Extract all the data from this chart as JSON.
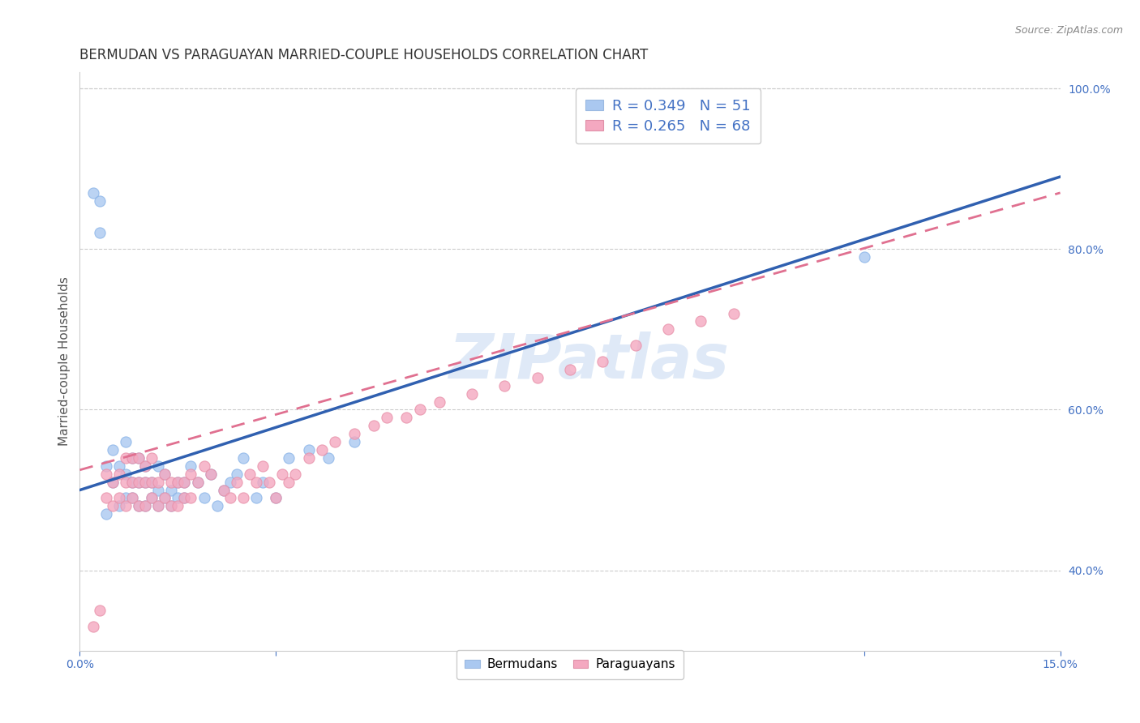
{
  "title": "BERMUDAN VS PARAGUAYAN MARRIED-COUPLE HOUSEHOLDS CORRELATION CHART",
  "source": "Source: ZipAtlas.com",
  "ylabel": "Married-couple Households",
  "xlim": [
    0.0,
    0.15
  ],
  "ylim": [
    0.3,
    1.02
  ],
  "xticks": [
    0.0,
    0.03,
    0.06,
    0.09,
    0.12,
    0.15
  ],
  "xtick_labels": [
    "0.0%",
    "",
    "",
    "",
    "",
    "15.0%"
  ],
  "ytick_labels_right": [
    "40.0%",
    "60.0%",
    "80.0%",
    "100.0%"
  ],
  "yticks_right": [
    0.4,
    0.6,
    0.8,
    1.0
  ],
  "legend1_label": "R = 0.349   N = 51",
  "legend2_label": "R = 0.265   N = 68",
  "legend_color1": "#aac8f0",
  "legend_color2": "#f4a8c0",
  "dot_color1": "#aac8f0",
  "dot_color2": "#f4a8c0",
  "line_color1": "#3060b0",
  "line_color2": "#e07090",
  "watermark": "ZIPatlas",
  "title_fontsize": 13,
  "axis_label_fontsize": 11,
  "tick_fontsize": 10,
  "bermuda_x": [
    0.002,
    0.003,
    0.003,
    0.004,
    0.004,
    0.005,
    0.005,
    0.006,
    0.006,
    0.007,
    0.007,
    0.007,
    0.008,
    0.008,
    0.008,
    0.009,
    0.009,
    0.009,
    0.01,
    0.01,
    0.01,
    0.011,
    0.011,
    0.012,
    0.012,
    0.012,
    0.013,
    0.013,
    0.014,
    0.014,
    0.015,
    0.015,
    0.016,
    0.016,
    0.017,
    0.018,
    0.019,
    0.02,
    0.021,
    0.022,
    0.023,
    0.024,
    0.025,
    0.027,
    0.028,
    0.03,
    0.032,
    0.035,
    0.038,
    0.042,
    0.12
  ],
  "bermuda_y": [
    0.87,
    0.86,
    0.82,
    0.47,
    0.53,
    0.51,
    0.55,
    0.48,
    0.53,
    0.49,
    0.52,
    0.56,
    0.49,
    0.51,
    0.54,
    0.48,
    0.51,
    0.54,
    0.48,
    0.51,
    0.53,
    0.49,
    0.51,
    0.48,
    0.5,
    0.53,
    0.49,
    0.52,
    0.48,
    0.5,
    0.49,
    0.51,
    0.49,
    0.51,
    0.53,
    0.51,
    0.49,
    0.52,
    0.48,
    0.5,
    0.51,
    0.52,
    0.54,
    0.49,
    0.51,
    0.49,
    0.54,
    0.55,
    0.54,
    0.56,
    0.79
  ],
  "paraguay_x": [
    0.002,
    0.003,
    0.004,
    0.004,
    0.005,
    0.005,
    0.006,
    0.006,
    0.007,
    0.007,
    0.007,
    0.008,
    0.008,
    0.008,
    0.009,
    0.009,
    0.009,
    0.01,
    0.01,
    0.01,
    0.011,
    0.011,
    0.011,
    0.012,
    0.012,
    0.013,
    0.013,
    0.014,
    0.014,
    0.015,
    0.015,
    0.016,
    0.016,
    0.017,
    0.017,
    0.018,
    0.019,
    0.02,
    0.022,
    0.023,
    0.024,
    0.025,
    0.026,
    0.027,
    0.028,
    0.029,
    0.03,
    0.031,
    0.032,
    0.033,
    0.035,
    0.037,
    0.039,
    0.042,
    0.045,
    0.047,
    0.05,
    0.052,
    0.055,
    0.06,
    0.065,
    0.07,
    0.075,
    0.08,
    0.085,
    0.09,
    0.095,
    0.1
  ],
  "paraguay_y": [
    0.33,
    0.35,
    0.49,
    0.52,
    0.48,
    0.51,
    0.49,
    0.52,
    0.48,
    0.51,
    0.54,
    0.49,
    0.51,
    0.54,
    0.48,
    0.51,
    0.54,
    0.48,
    0.51,
    0.53,
    0.49,
    0.51,
    0.54,
    0.48,
    0.51,
    0.49,
    0.52,
    0.48,
    0.51,
    0.48,
    0.51,
    0.49,
    0.51,
    0.49,
    0.52,
    0.51,
    0.53,
    0.52,
    0.5,
    0.49,
    0.51,
    0.49,
    0.52,
    0.51,
    0.53,
    0.51,
    0.49,
    0.52,
    0.51,
    0.52,
    0.54,
    0.55,
    0.56,
    0.57,
    0.58,
    0.59,
    0.59,
    0.6,
    0.61,
    0.62,
    0.63,
    0.64,
    0.65,
    0.66,
    0.68,
    0.7,
    0.71,
    0.72
  ]
}
